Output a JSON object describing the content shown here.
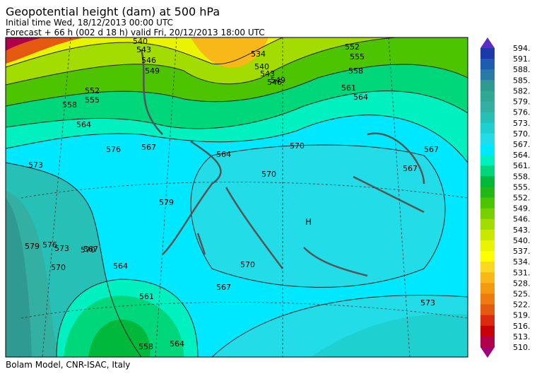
{
  "header": {
    "title": "Geopotential height (dam) at 500 hPa",
    "initial_time": "Initial time  Wed, 18/12/2013  00:00 UTC",
    "forecast": "Forecast  +  66 h  (002 d 18 h)  valid Fri, 20/12/2013 18:00 UTC"
  },
  "colorbar": {
    "labels": [
      "594.",
      "591.",
      "588.",
      "585.",
      "582.",
      "579.",
      "576.",
      "573.",
      "570.",
      "567.",
      "564.",
      "561.",
      "558.",
      "555.",
      "552.",
      "549.",
      "546.",
      "543.",
      "540.",
      "537.",
      "534.",
      "531.",
      "528.",
      "525.",
      "522.",
      "519.",
      "516.",
      "513.",
      "510."
    ],
    "colors": [
      "#1a3aa8",
      "#1e5cb0",
      "#2a7aa8",
      "#2f9a92",
      "#2fa894",
      "#33b0a2",
      "#26c0b6",
      "#1fd0d0",
      "#22dce8",
      "#00e8ff",
      "#00f0c0",
      "#00d67a",
      "#00b83a",
      "#22b818",
      "#4cc400",
      "#78d000",
      "#a2dc00",
      "#c8e800",
      "#e8f400",
      "#ffff00",
      "#fcd820",
      "#f8b818",
      "#f39a12",
      "#ec7c10",
      "#e45a10",
      "#dc2a10",
      "#c8000a",
      "#b0004a"
    ],
    "top_color": "#5a2cc8",
    "bottom_color": "#a0007a"
  },
  "map": {
    "contour_labels": [
      "540",
      "543",
      "546",
      "549",
      "552",
      "555",
      "558",
      "561",
      "564",
      "567",
      "570",
      "573",
      "576",
      "579",
      "567",
      "564",
      "570",
      "567",
      "570",
      "567",
      "561",
      "564",
      "558",
      "534",
      "540",
      "543",
      "546",
      "549",
      "552",
      "555",
      "558",
      "564",
      "570",
      "573",
      "567",
      "564",
      "570",
      "573",
      "576",
      "579"
    ],
    "high": "H"
  },
  "footer": "Bolam Model, CNR-ISAC, Italy"
}
